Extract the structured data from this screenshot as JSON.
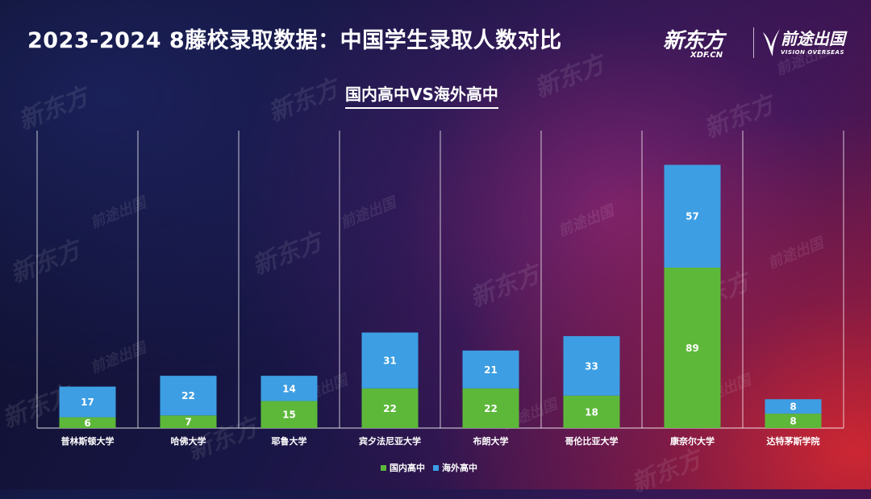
{
  "header": {
    "title": "2023-2024 8藤校录取数据：中国学生录取人数对比",
    "subtitle": "国内高中VS海外高中"
  },
  "logos": {
    "xdf_brand": "新东方",
    "xdf_url": "XDF.CN",
    "vision_brand": "前途出国",
    "vision_en": "VISION OVERSEAS"
  },
  "colors": {
    "domestic": "#5db83a",
    "overseas": "#3d9ee3"
  },
  "chart_data": {
    "type": "bar",
    "stacked": true,
    "categories": [
      "普林斯顿大学",
      "哈佛大学",
      "耶鲁大学",
      "宾夕法尼亚大学",
      "布朗大学",
      "哥伦比亚大学",
      "康奈尔大学",
      "达特茅斯学院"
    ],
    "series": [
      {
        "name": "国内高中",
        "values": [
          6,
          7,
          15,
          22,
          22,
          18,
          89,
          8
        ]
      },
      {
        "name": "海外高中",
        "values": [
          17,
          22,
          14,
          31,
          21,
          33,
          57,
          8
        ]
      }
    ],
    "ylim": [
      0,
      165
    ],
    "legend": "bottom-center",
    "grid": "vertical-separators"
  }
}
